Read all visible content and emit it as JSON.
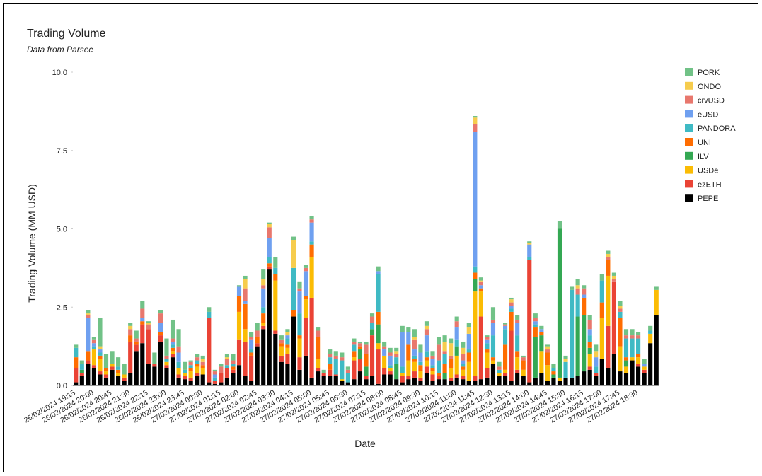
{
  "chart_data": {
    "type": "stacked_bar",
    "title": "Trading Volume",
    "subtitle": "Data from Parsec",
    "x_label": "Date",
    "y_label": "Trading Volume (MM USD)",
    "ylim": [
      0,
      10
    ],
    "yticks": [
      {
        "value": 0,
        "label": "0.0"
      },
      {
        "value": 2.5,
        "label": "2.5"
      },
      {
        "value": 5,
        "label": "5.0"
      },
      {
        "value": 7.5,
        "label": "7.5"
      },
      {
        "value": 10,
        "label": "10.0"
      }
    ],
    "grid": false,
    "legend": "right",
    "categories": [
      "26/02/2024 19:15",
      null,
      null,
      "26/02/2024 20:00",
      null,
      null,
      "26/02/2024 20:45",
      null,
      null,
      "26/02/2024 21:30",
      null,
      null,
      "26/02/2024 22:15",
      null,
      null,
      "26/02/2024 23:00",
      null,
      null,
      "26/02/2024 23:45",
      null,
      null,
      "27/02/2024 00:30",
      null,
      null,
      "27/02/2024 01:15",
      null,
      null,
      "27/02/2024 02:00",
      null,
      null,
      "27/02/2024 02:45",
      null,
      null,
      "27/02/2024 03:30",
      null,
      null,
      "27/02/2024 04:15",
      null,
      null,
      "27/02/2024 05:00",
      null,
      null,
      "27/02/2024 05:45",
      null,
      null,
      "27/02/2024 06:30",
      null,
      null,
      "27/02/2024 07:15",
      null,
      null,
      "27/02/2024 08:00",
      null,
      null,
      "27/02/2024 08:45",
      null,
      null,
      "27/02/2024 09:30",
      null,
      null,
      "27/02/2024 10:15",
      null,
      null,
      "27/02/2024 11:00",
      null,
      null,
      "27/02/2024 11:45",
      null,
      null,
      "27/02/2024 12:30",
      null,
      null,
      "27/02/2024 13:15",
      null,
      null,
      "27/02/2024 14:00",
      null,
      null,
      "27/02/2024 14:45",
      null,
      null,
      "27/02/2024 15:30",
      null,
      null,
      "27/02/2024 16:15",
      null,
      null,
      "27/02/2024 17:00",
      null,
      null,
      "27/02/2024 17:45",
      null,
      null,
      "27/02/2024 18:30",
      null,
      null,
      null
    ],
    "series": [
      {
        "name": "PORK",
        "color": "#71c287",
        "values": [
          0.1,
          0.1,
          0.1,
          0.1,
          0.9,
          0.45,
          0.4,
          0.3,
          0.35,
          0.1,
          0.25,
          0.25,
          0.05,
          0.35,
          0.1,
          0.55,
          0.6,
          0.55,
          0.25,
          0.05,
          0.1,
          0.1,
          0.15,
          0.05,
          0.1,
          0.1,
          0.2,
          0.05,
          0.1,
          0.15,
          0.25,
          0.3,
          0.05,
          0.35,
          0.15,
          0.1,
          0.1,
          0.2,
          0.1,
          0.1,
          0.1,
          0.1,
          0.15,
          0.15,
          0.15,
          0.1,
          0.1,
          0.05,
          0.1,
          0.1,
          0.15,
          0.15,
          0.15,
          0.1,
          0.2,
          0.15,
          0.25,
          0.25,
          0.15,
          0.15,
          0.25,
          0.2,
          0.15,
          0.15,
          0.2,
          0.15,
          0.05,
          0.1,
          0.05,
          0.4,
          0.15,
          0.05,
          0.05,
          0.15,
          0.05,
          0.05,
          0.15,
          0.1,
          0.05,
          0.15,
          0.25,
          0.1,
          0.1,
          0.2,
          0.1,
          0.15,
          0.2,
          0.2,
          0.1,
          0.1,
          0.15,
          0.2,
          0.2,
          0.1,
          0.15,
          0.15,
          0.1
        ]
      },
      {
        "name": "ONDO",
        "color": "#f6cc4d",
        "values": [
          0,
          0,
          0.05,
          0,
          0.1,
          0,
          0,
          0,
          0,
          0.1,
          0,
          0,
          0.05,
          0,
          0,
          0,
          0,
          0,
          0,
          0,
          0,
          0.1,
          0,
          0,
          0,
          0.05,
          0,
          0,
          0.3,
          0,
          0,
          0.2,
          0.1,
          0,
          0,
          0.1,
          0.9,
          0,
          0,
          0,
          0,
          0,
          0,
          0,
          0,
          0,
          0,
          0,
          0,
          0,
          0,
          0,
          0,
          0.1,
          0,
          0,
          0.1,
          0,
          0.1,
          0,
          0,
          0.3,
          0.4,
          0,
          0.2,
          0.2,
          0.2,
          0.05,
          0,
          0,
          0,
          0,
          0.1,
          0,
          0,
          0.05,
          0,
          0,
          0.1,
          0,
          0,
          0.1,
          0,
          0.1,
          0,
          0,
          0.2,
          0,
          0.1,
          0.1,
          0.1,
          0,
          0,
          0,
          0,
          0,
          0
        ]
      },
      {
        "name": "crvUSD",
        "color": "#e8776d",
        "values": [
          0,
          0,
          0.1,
          0.1,
          0,
          0,
          0,
          0,
          0,
          0.2,
          0.1,
          0.3,
          0.15,
          0,
          0.3,
          0.1,
          0.1,
          0.2,
          0,
          0.1,
          0.1,
          0.1,
          0,
          0.1,
          0.2,
          0.2,
          0.1,
          0,
          0.4,
          0.1,
          0.2,
          0.1,
          0.35,
          0,
          0.1,
          0,
          0,
          0.1,
          0.1,
          0.1,
          0.2,
          0,
          0.1,
          0.1,
          0.1,
          0.1,
          0.1,
          0.1,
          0.3,
          0.2,
          0,
          0.1,
          0.1,
          0.1,
          0,
          0,
          0.3,
          0,
          0.2,
          0.1,
          0.5,
          0.1,
          0.1,
          0.2,
          0.2,
          0,
          0.25,
          0.1,
          0.1,
          0.1,
          0.1,
          0.05,
          0.1,
          0.1,
          0.1,
          0,
          0.1,
          0,
          0.1,
          0,
          0,
          0,
          0,
          0.2,
          0.2,
          0.3,
          0,
          0,
          0.1,
          0.1,
          0.1,
          0.1,
          0.1,
          0.1,
          0,
          0,
          0
        ]
      },
      {
        "name": "eUSD",
        "color": "#6fa0f0",
        "values": [
          0,
          0,
          1.05,
          0.1,
          0.1,
          0,
          0,
          0,
          0,
          0,
          0,
          0.1,
          0,
          0,
          0.3,
          0,
          0.1,
          0.3,
          0,
          0,
          0,
          0,
          0,
          0.1,
          0,
          0,
          0,
          0.3,
          0.1,
          0.3,
          0,
          0.6,
          0.6,
          0,
          0,
          0.1,
          0,
          0.7,
          0.8,
          0.6,
          0,
          0,
          0,
          0,
          0,
          0,
          0,
          0,
          0,
          0,
          0.1,
          0.2,
          0.3,
          0,
          1.1,
          0.4,
          0.2,
          0.3,
          0.5,
          0.2,
          0,
          0,
          0,
          0.4,
          0.1,
          0.5,
          4.3,
          0.1,
          0.1,
          0.4,
          0,
          0.1,
          0.1,
          0.4,
          0,
          0.4,
          0.1,
          0.1,
          0,
          0,
          0,
          0,
          0,
          0,
          0.1,
          0.2,
          0.3,
          0,
          0,
          0,
          0,
          0,
          0,
          0,
          0.1,
          0,
          0
        ]
      },
      {
        "name": "PANDORA",
        "color": "#3fbac4",
        "values": [
          0.3,
          0.2,
          0,
          0.1,
          0.1,
          0,
          0,
          0.1,
          0,
          0,
          0,
          0,
          0,
          0,
          0,
          0.1,
          0.1,
          0.2,
          0.1,
          0.1,
          0.1,
          0,
          0.2,
          0.1,
          0,
          0.1,
          0.1,
          0,
          0,
          0.1,
          0,
          0.2,
          0.2,
          0.2,
          0,
          0.2,
          1.35,
          0.7,
          0,
          0.1,
          0,
          0,
          0.2,
          0.5,
          0.6,
          0.3,
          0.2,
          0,
          0,
          0.2,
          1.2,
          0,
          0.1,
          0.2,
          0.2,
          0,
          0.1,
          0.1,
          0.2,
          0.1,
          0.4,
          0.3,
          0,
          0.2,
          0.1,
          0.1,
          0.2,
          0,
          0.2,
          0.7,
          0.1,
          0.5,
          0.1,
          0.5,
          0,
          0.1,
          0.1,
          0,
          0,
          0.1,
          0,
          0.5,
          2.8,
          0.7,
          0,
          0.2,
          0.2,
          0.7,
          0,
          0,
          0.2,
          0.6,
          0.6,
          0.5,
          0,
          0.1,
          0
        ]
      },
      {
        "name": "UNI",
        "color": "#ff6d01",
        "values": [
          0.35,
          0,
          0.3,
          0,
          0.1,
          0.1,
          0,
          0.1,
          0,
          0.2,
          0.1,
          0.1,
          0,
          0,
          0.1,
          0,
          0.1,
          0,
          0,
          0.1,
          0.1,
          0.1,
          0,
          0,
          0,
          0,
          0.1,
          0.5,
          0.8,
          0.1,
          0.2,
          0.3,
          0.1,
          0.2,
          0.1,
          0.1,
          0.2,
          0.1,
          0.1,
          0.4,
          0.7,
          0,
          0.2,
          0,
          0,
          0,
          0.2,
          0.1,
          0.4,
          0,
          0.4,
          0,
          0,
          0,
          0,
          0.5,
          0.1,
          0.2,
          0.1,
          0.1,
          0.1,
          0.3,
          0.3,
          0,
          0.1,
          0.3,
          0.2,
          0.1,
          0.1,
          0.1,
          0,
          0.8,
          0.6,
          0.2,
          0.3,
          0,
          0.3,
          0.1,
          0.4,
          0.1,
          0,
          0,
          0,
          0,
          0.55,
          0.2,
          0,
          0.5,
          0.5,
          0,
          0.9,
          0.1,
          0,
          0.1,
          0,
          0,
          0
        ]
      },
      {
        "name": "ILV",
        "color": "#34a853",
        "values": [
          0,
          0.1,
          0,
          0,
          0,
          0,
          0,
          0,
          0,
          0,
          0,
          0,
          0,
          0,
          0,
          0,
          0,
          0,
          0,
          0,
          0,
          0,
          0,
          0,
          0,
          0,
          0,
          0,
          0,
          0,
          0,
          0,
          0,
          0,
          0,
          0,
          0,
          0,
          0,
          0,
          0,
          0,
          0,
          0,
          0,
          0,
          0,
          0.3,
          0.3,
          0.2,
          0.6,
          0,
          0,
          0.5,
          0,
          0,
          0,
          0,
          0,
          0,
          0,
          0.2,
          0,
          0.3,
          0,
          0,
          0.4,
          0,
          0,
          0,
          0,
          0,
          0,
          0,
          0,
          0,
          1.3,
          0.5,
          0,
          0.1,
          4.75,
          0,
          0,
          1.9,
          1.8,
          0.2,
          0,
          0,
          0,
          0,
          0,
          0.2,
          0,
          0,
          0,
          0,
          0
        ]
      },
      {
        "name": "USDe",
        "color": "#fbbc04",
        "values": [
          0,
          0,
          0,
          0.5,
          0.4,
          0.1,
          0.1,
          0.1,
          0.1,
          0,
          0,
          0,
          0,
          0,
          0,
          0.1,
          0.1,
          0.2,
          0.1,
          0.2,
          0.2,
          0.2,
          0,
          0,
          0,
          0,
          0,
          0.9,
          0.4,
          0,
          0,
          0.1,
          0,
          1.6,
          0.3,
          0.2,
          0,
          0.6,
          0.6,
          1.3,
          0.3,
          0,
          0,
          0,
          0.05,
          0,
          0.1,
          0,
          0,
          0,
          0.2,
          0.4,
          0.1,
          0,
          0.1,
          0.5,
          0.3,
          0.2,
          0.2,
          0.1,
          0,
          0,
          0.3,
          0.6,
          0.2,
          0.6,
          2.7,
          0.8,
          0.5,
          0.1,
          0.1,
          0.1,
          0,
          0.4,
          0.2,
          0,
          0,
          0.7,
          0.5,
          0,
          0.1,
          0,
          0,
          0,
          0,
          0.4,
          0,
          1.3,
          1.6,
          0,
          0.8,
          0.2,
          0.1,
          0.2,
          0.1,
          0.3,
          0.8
        ]
      },
      {
        "name": "ezETH",
        "color": "#ea4335",
        "values": [
          0.45,
          0.1,
          0.1,
          0.1,
          0.1,
          0.1,
          0.1,
          0,
          0.1,
          1.0,
          0.2,
          0.6,
          1.1,
          0.1,
          0.2,
          0.1,
          0.1,
          0.1,
          0.1,
          0.1,
          0.1,
          0,
          2.05,
          0.1,
          0.3,
          0.3,
          0.1,
          0.8,
          1.1,
          0.8,
          0.1,
          0.1,
          0.1,
          0.1,
          0.2,
          0.3,
          0,
          0.4,
          1.2,
          2.55,
          0.1,
          0.1,
          0.2,
          0.05,
          0,
          0,
          0.6,
          0.4,
          0.1,
          1.3,
          1.1,
          0.2,
          0.1,
          0,
          0.2,
          0.1,
          0.2,
          0.1,
          0.2,
          0.2,
          0.1,
          0,
          0.1,
          0.1,
          0.1,
          0,
          0.15,
          2.0,
          0.3,
          0,
          0,
          0.1,
          1.6,
          0.1,
          0,
          3.9,
          0,
          0,
          0,
          0,
          0,
          0,
          0,
          0,
          0,
          0.1,
          0.1,
          0,
          1.35,
          2.3,
          0,
          0,
          0,
          0.1,
          0.1,
          0,
          0
        ]
      },
      {
        "name": "PEPE",
        "color": "#000000",
        "values": [
          0.1,
          0.3,
          0.7,
          0.55,
          0.35,
          0.25,
          0.5,
          0.3,
          0.15,
          0.4,
          1.1,
          1.35,
          0.7,
          0.6,
          1.4,
          0.55,
          0.9,
          0.25,
          0.2,
          0.15,
          0.3,
          0.35,
          0.1,
          0.05,
          0.1,
          0.25,
          0.4,
          0.65,
          0.3,
          0.15,
          1.25,
          1.8,
          3.7,
          1.65,
          0.75,
          0.7,
          2.2,
          0.5,
          0.95,
          0.25,
          0.45,
          0.3,
          0.3,
          0.3,
          0.15,
          0.1,
          0.2,
          0.45,
          0.2,
          0.3,
          0.05,
          0.35,
          0.35,
          0.2,
          0.1,
          0.2,
          0.25,
          0.15,
          0.4,
          0.15,
          0.2,
          0.2,
          0.15,
          0.25,
          0.2,
          0.15,
          0.15,
          0.2,
          0.25,
          0.7,
          0.3,
          0.3,
          0.15,
          0.4,
          0.3,
          0.1,
          0.25,
          0.4,
          0.15,
          0.25,
          0.15,
          0.25,
          0.25,
          0.3,
          0.45,
          0.5,
          0.3,
          0.85,
          0.55,
          1.0,
          0.45,
          0.4,
          0.8,
          0.6,
          0.4,
          1.35,
          2.25
        ]
      }
    ]
  }
}
